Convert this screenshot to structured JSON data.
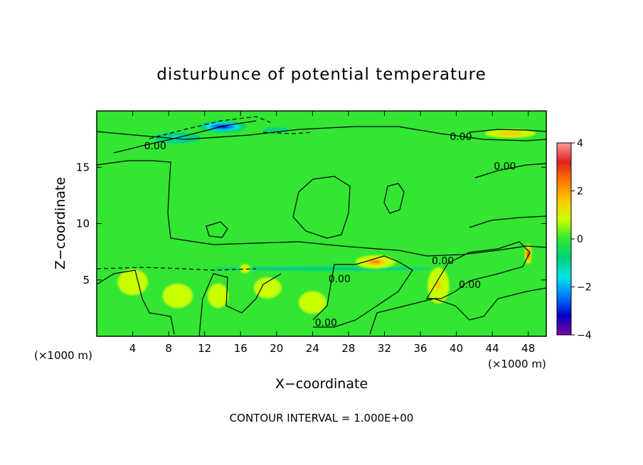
{
  "chart_data": {
    "type": "heatmap",
    "title": "disturbunce of potential temperature",
    "xlabel": "X−coordinate",
    "ylabel": "Z−coordinate",
    "x_unit_left": "(×1000 m)",
    "x_unit_right": "(×1000 m)",
    "footer": "CONTOUR INTERVAL = 1.000E+00",
    "xlim": [
      0,
      50
    ],
    "ylim": [
      0,
      20
    ],
    "x_ticks": [
      4,
      8,
      12,
      16,
      20,
      24,
      28,
      32,
      36,
      40,
      44,
      48
    ],
    "x_tick_labels": [
      "4",
      "8",
      "12",
      "16",
      "20",
      "24",
      "28",
      "32",
      "36",
      "40",
      "44",
      "48"
    ],
    "y_ticks": [
      5,
      10,
      15
    ],
    "y_tick_labels": [
      "5",
      "10",
      "15"
    ],
    "colorbar": {
      "range": [
        -4,
        4
      ],
      "ticks": [
        4,
        2,
        0,
        -2,
        -4
      ],
      "tick_labels": [
        "4",
        "2",
        "0",
        "−2",
        "−4"
      ],
      "colors": [
        "#ff9a9a",
        "#e02020",
        "#ff7a00",
        "#ffc800",
        "#c8ff00",
        "#32e632",
        "#00d27a",
        "#00e6e6",
        "#0078ff",
        "#0000c8",
        "#8000a0"
      ]
    },
    "background_value": 0.2,
    "features": [
      {
        "kind": "negative",
        "x": 14,
        "y": 18.6,
        "value": -3.5,
        "sx": 2.6,
        "sy": 0.5
      },
      {
        "kind": "negative",
        "x": 9,
        "y": 17.6,
        "value": -1.2,
        "sx": 3.5,
        "sy": 0.7
      },
      {
        "kind": "negative",
        "x": 20,
        "y": 18.3,
        "value": -0.9,
        "sx": 3,
        "sy": 0.5
      },
      {
        "kind": "negative",
        "x": 25,
        "y": 6.0,
        "value": -0.8,
        "sx": 25,
        "sy": 0.4
      },
      {
        "kind": "positive",
        "x": 46,
        "y": 18.0,
        "value": 1.8,
        "sx": 2.8,
        "sy": 0.4
      },
      {
        "kind": "positive",
        "x": 48,
        "y": 7.3,
        "value": 3.3,
        "sx": 0.4,
        "sy": 0.9
      },
      {
        "kind": "positive",
        "x": 31,
        "y": 6.6,
        "value": 2.2,
        "sx": 2.2,
        "sy": 0.6
      },
      {
        "kind": "positive",
        "x": 16.5,
        "y": 6.0,
        "value": 1.4,
        "sx": 0.6,
        "sy": 0.4
      },
      {
        "kind": "positive",
        "x": 4,
        "y": 4.8,
        "value": 1.0,
        "sx": 2.2,
        "sy": 1.5
      },
      {
        "kind": "positive",
        "x": 9,
        "y": 3.6,
        "value": 0.9,
        "sx": 2.2,
        "sy": 1.4
      },
      {
        "kind": "positive",
        "x": 13.5,
        "y": 3.6,
        "value": 0.8,
        "sx": 1.5,
        "sy": 1.4
      },
      {
        "kind": "positive",
        "x": 19,
        "y": 4.3,
        "value": 0.9,
        "sx": 2,
        "sy": 1.2
      },
      {
        "kind": "positive",
        "x": 24,
        "y": 3.0,
        "value": 0.8,
        "sx": 2,
        "sy": 1.3
      },
      {
        "kind": "positive",
        "x": 38,
        "y": 4.5,
        "value": 1.4,
        "sx": 1.2,
        "sy": 1.6
      }
    ],
    "contour_labels": [
      {
        "text": "0.00",
        "x": 40.5,
        "y": 17.4
      },
      {
        "text": "0.00",
        "x": 45.4,
        "y": 14.8
      },
      {
        "text": "0.00",
        "x": 38.5,
        "y": 6.4
      },
      {
        "text": "0.00",
        "x": 41.5,
        "y": 4.3
      },
      {
        "text": "0.00",
        "x": 27,
        "y": 4.8
      },
      {
        "text": "0.00",
        "x": 25.5,
        "y": 0.9
      },
      {
        "text": "0.00",
        "x": 6.5,
        "y": 16.6
      }
    ]
  }
}
